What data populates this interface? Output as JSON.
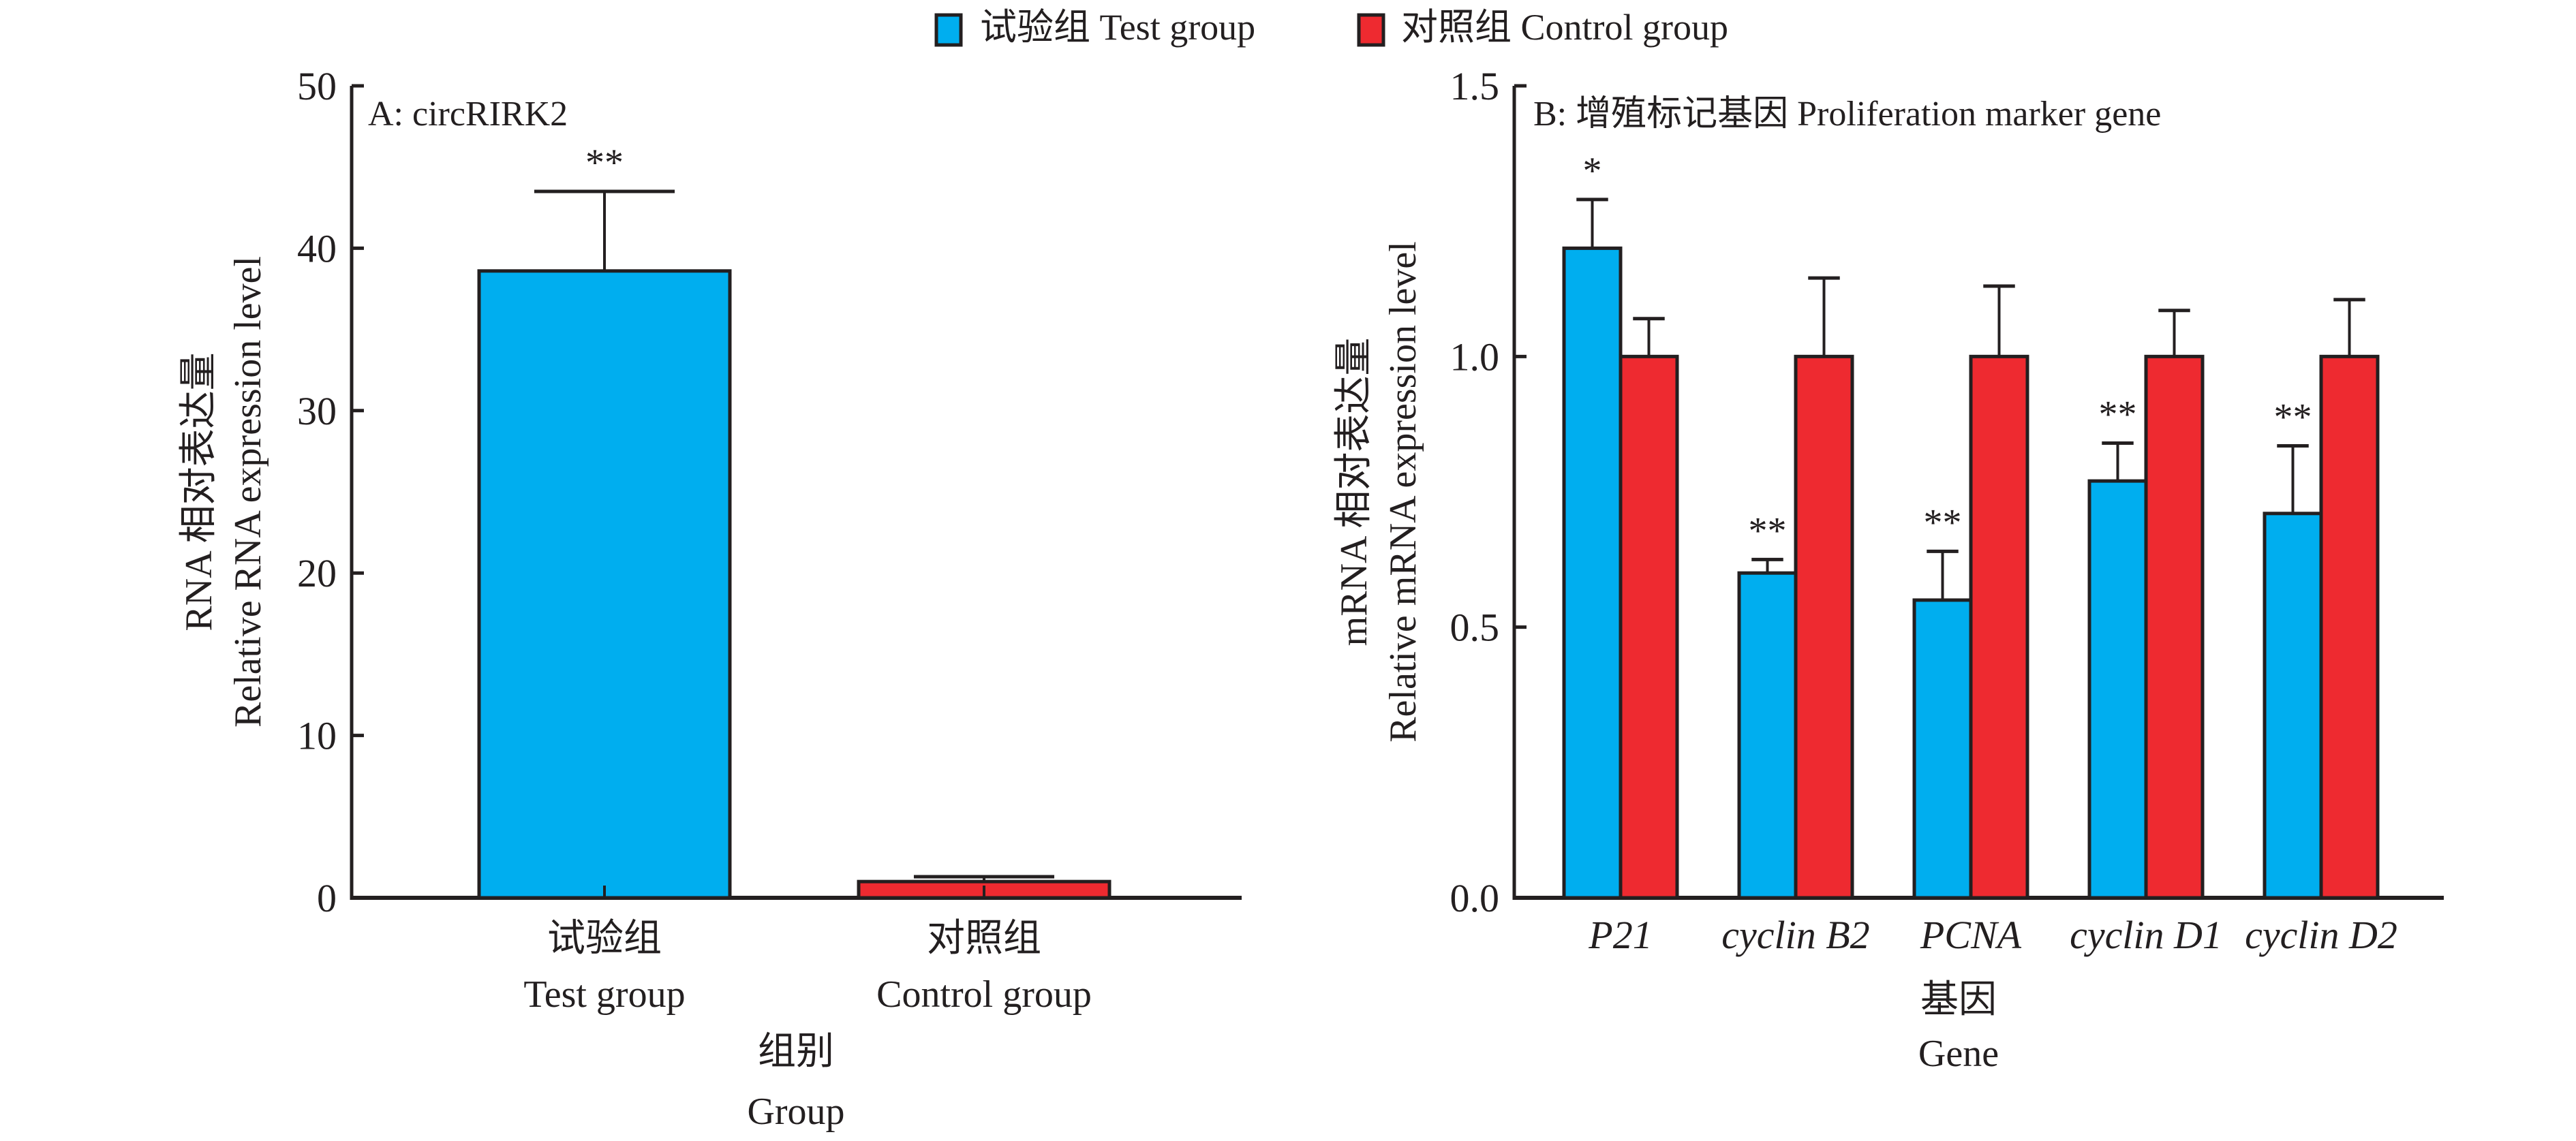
{
  "legend": {
    "position": "top-center",
    "entries": [
      {
        "label": "试验组 Test group",
        "color": "#00AEEF"
      },
      {
        "label": "对照组 Control group",
        "color": "#EE2A30"
      }
    ]
  },
  "chart_data": [
    {
      "type": "bar",
      "panel_title": "A: circRIRK2",
      "ylabel_cn": "RNA 相对表达量",
      "ylabel_en": "Relative RNA expression level",
      "xlabel_cn": "组别",
      "xlabel_en": "Group",
      "categories": [
        {
          "cn": "试验组",
          "en": "Test group"
        },
        {
          "cn": "对照组",
          "en": "Control group"
        }
      ],
      "ylim": [
        0,
        50
      ],
      "yticks": [
        "0",
        "10",
        "20",
        "30",
        "40",
        "50"
      ],
      "ytick_values": [
        0,
        10,
        20,
        30,
        40,
        50
      ],
      "series": [
        {
          "name": "试验组 Test group",
          "color": "#00AEEF",
          "values": [
            38.6
          ],
          "errors": [
            4.9
          ],
          "significance": [
            "**"
          ],
          "category_index": [
            0
          ]
        },
        {
          "name": "对照组 Control group",
          "color": "#EE2A30",
          "values": [
            1.0
          ],
          "errors": [
            0.3
          ],
          "significance": [
            ""
          ],
          "category_index": [
            1
          ]
        }
      ],
      "grid": false
    },
    {
      "type": "bar",
      "panel_title": "B: 增殖标记基因 Proliferation marker gene",
      "ylabel_cn": "mRNA 相对表达量",
      "ylabel_en": "Relative mRNA expression level",
      "xlabel_cn": "基因",
      "xlabel_en": "Gene",
      "categories": [
        "P21",
        "cyclin B2",
        "PCNA",
        "cyclin D1",
        "cyclin D2"
      ],
      "ylim": [
        0,
        1.5
      ],
      "yticks": [
        "0.0",
        "0.5",
        "1.0",
        "1.5"
      ],
      "ytick_values": [
        0,
        0.5,
        1.0,
        1.5
      ],
      "series": [
        {
          "name": "试验组 Test group",
          "color": "#00AEEF",
          "values": [
            1.2,
            0.6,
            0.55,
            0.77,
            0.71
          ],
          "errors": [
            0.09,
            0.025,
            0.09,
            0.07,
            0.125
          ],
          "significance": [
            "*",
            "**",
            "**",
            "**",
            "**"
          ]
        },
        {
          "name": "对照组 Control group",
          "color": "#EE2A30",
          "values": [
            1.0,
            1.0,
            1.0,
            1.0,
            1.0
          ],
          "errors": [
            0.07,
            0.145,
            0.13,
            0.085,
            0.105
          ],
          "significance": [
            "",
            "",
            "",
            "",
            ""
          ]
        }
      ],
      "grid": false
    }
  ]
}
